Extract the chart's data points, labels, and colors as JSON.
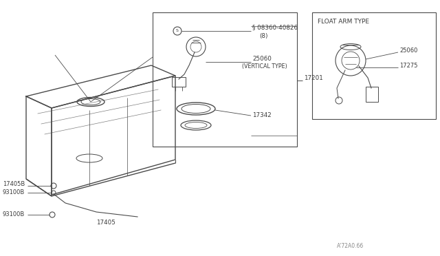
{
  "bg": "#ffffff",
  "lc": "#4a4a4a",
  "tc": "#3a3a3a",
  "figsize": [
    6.4,
    3.72
  ],
  "dpi": 100,
  "footer": "A'72A0.66",
  "float_arm_type": "FLOAT ARM TYPE",
  "labels": {
    "screw": "§ 08360-40826",
    "screw_qty": "(8)",
    "p25060": "25060",
    "vert": "(VERTICAL TYPE)",
    "p17201": "17201",
    "p17342": "17342",
    "p17405b": "17405B",
    "p93100b_1": "93100B",
    "p17405": "17405",
    "p93100b_2": "93100B",
    "p25060r": "25060",
    "p17275": "17275"
  }
}
